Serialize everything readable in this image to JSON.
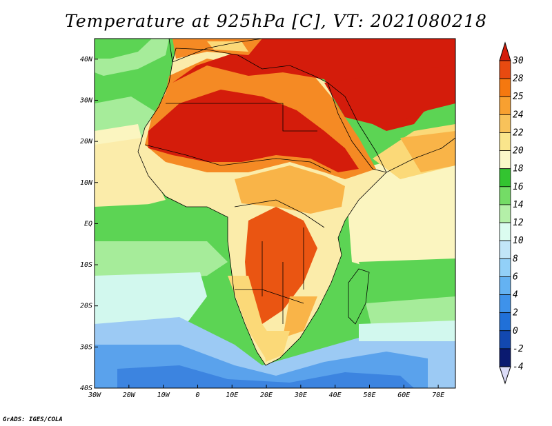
{
  "title": "Temperature at 925hPa [C], VT: 2021080218",
  "credit": "GrADS: IGES/COLA",
  "map": {
    "lon_range": [
      -30,
      75
    ],
    "lat_range": [
      -40,
      45
    ],
    "lon_ticks": [
      {
        "value": -30,
        "label": "30W"
      },
      {
        "value": -20,
        "label": "20W"
      },
      {
        "value": -10,
        "label": "10W"
      },
      {
        "value": 0,
        "label": "0"
      },
      {
        "value": 10,
        "label": "10E"
      },
      {
        "value": 20,
        "label": "20E"
      },
      {
        "value": 30,
        "label": "30E"
      },
      {
        "value": 40,
        "label": "40E"
      },
      {
        "value": 50,
        "label": "50E"
      },
      {
        "value": 60,
        "label": "60E"
      },
      {
        "value": 70,
        "label": "70E"
      }
    ],
    "lat_ticks": [
      {
        "value": 40,
        "label": "40N"
      },
      {
        "value": 30,
        "label": "30N"
      },
      {
        "value": 20,
        "label": "20N"
      },
      {
        "value": 10,
        "label": "10N"
      },
      {
        "value": 0,
        "label": "EQ"
      },
      {
        "value": -10,
        "label": "10S"
      },
      {
        "value": -20,
        "label": "20S"
      },
      {
        "value": -30,
        "label": "30S"
      },
      {
        "value": -40,
        "label": "40S"
      }
    ]
  },
  "colorbar": {
    "labels": [
      "30",
      "28",
      "25",
      "24",
      "22",
      "20",
      "18",
      "16",
      "14",
      "12",
      "10",
      "8",
      "6",
      "4",
      "2",
      "0",
      "-2",
      "-4"
    ],
    "colors": [
      "#d41c0b",
      "#e84a10",
      "#f5780f",
      "#f8a030",
      "#f8c25a",
      "#fae58c",
      "#fbf7c8",
      "#33c430",
      "#74dc66",
      "#b4f0a8",
      "#dbfcf0",
      "#c2e6f8",
      "#92d0f8",
      "#64b2f2",
      "#3e92ea",
      "#2070d8",
      "#1248b0",
      "#0a1a70"
    ],
    "top_color": "#d41c0b",
    "bottom_color": "#dcdcf8"
  },
  "colors": {
    "ocean_green": "#5cd454",
    "ocean_light_green": "#a6ec9a",
    "ocean_pale": "#fbf5c0",
    "ocean_cyan": "#d2f8ee",
    "ocean_light_blue": "#9ccaf4",
    "ocean_blue": "#5aa2ec",
    "ocean_deep_blue": "#3c84e0",
    "land_hot": "#d41c0b",
    "land_warm": "#ea5512",
    "land_orange": "#f58a24",
    "land_amber": "#f9b448",
    "land_yellow": "#fbd978",
    "land_pale": "#fbecaa",
    "borders": "#000000"
  }
}
